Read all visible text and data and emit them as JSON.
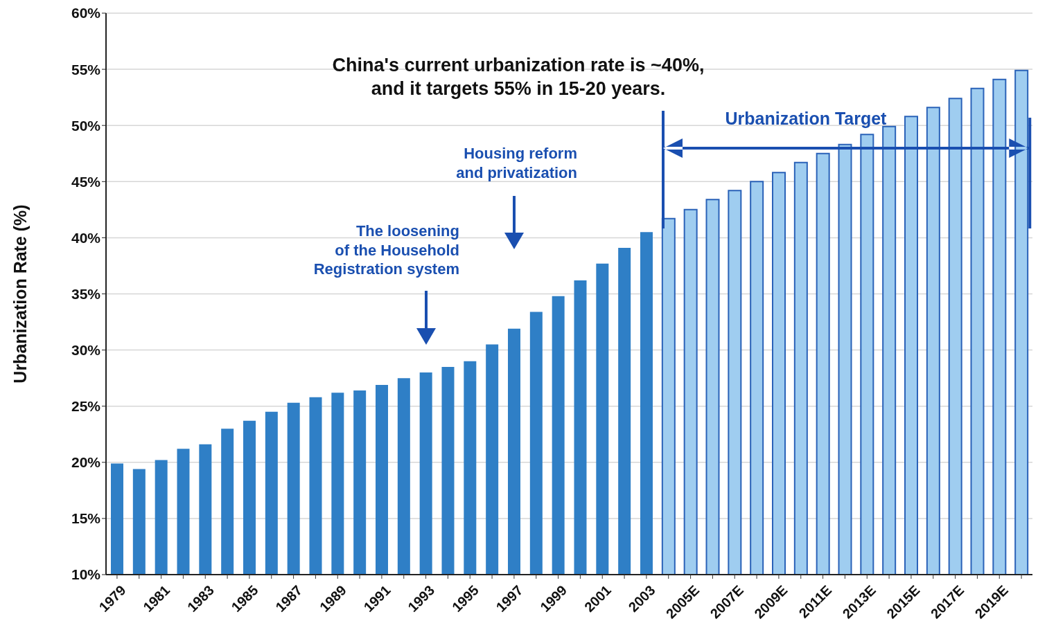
{
  "chart_data": {
    "type": "bar",
    "ylabel": "Urbanization Rate (%)",
    "categories": [
      "1979",
      null,
      "1981",
      null,
      "1983",
      null,
      "1985",
      null,
      "1987",
      null,
      "1989",
      null,
      "1991",
      null,
      "1993",
      null,
      "1995",
      null,
      "1997",
      null,
      "1999",
      null,
      "2001",
      null,
      "2003",
      null,
      "2005E",
      null,
      "2007E",
      null,
      "2009E",
      null,
      "2011E",
      null,
      "2013E",
      null,
      "2015E",
      null,
      "2017E",
      null,
      "2019E",
      null
    ],
    "values": [
      19.9,
      19.4,
      20.2,
      21.2,
      21.6,
      23.0,
      23.7,
      24.5,
      25.3,
      25.8,
      26.2,
      26.4,
      26.9,
      27.5,
      28.0,
      28.5,
      29.0,
      30.5,
      31.9,
      33.4,
      34.8,
      36.2,
      37.7,
      39.1,
      40.5,
      41.7,
      42.5,
      43.4,
      44.2,
      45.0,
      45.8,
      46.7,
      47.5,
      48.3,
      49.2,
      49.9,
      50.8,
      51.6,
      52.4,
      53.3,
      54.1,
      54.9
    ],
    "colors": [
      "#2f7fc6",
      "#2f7fc6",
      "#2f7fc6",
      "#2f7fc6",
      "#2f7fc6",
      "#2f7fc6",
      "#2f7fc6",
      "#2f7fc6",
      "#2f7fc6",
      "#2f7fc6",
      "#2f7fc6",
      "#2f7fc6",
      "#2f7fc6",
      "#2f7fc6",
      "#2f7fc6",
      "#2f7fc6",
      "#2f7fc6",
      "#2f7fc6",
      "#2f7fc6",
      "#2f7fc6",
      "#2f7fc6",
      "#2f7fc6",
      "#2f7fc6",
      "#2f7fc6",
      "#2f7fc6",
      "#9fcdf0",
      "#9fcdf0",
      "#9fcdf0",
      "#9fcdf0",
      "#9fcdf0",
      "#9fcdf0",
      "#9fcdf0",
      "#9fcdf0",
      "#9fcdf0",
      "#9fcdf0",
      "#9fcdf0",
      "#9fcdf0",
      "#9fcdf0",
      "#9fcdf0",
      "#9fcdf0",
      "#9fcdf0",
      "#9fcdf0"
    ],
    "ylim": [
      10,
      60
    ],
    "yticks": [
      {
        "value": 10,
        "label": "10%"
      },
      {
        "value": 15,
        "label": "15%"
      },
      {
        "value": 20,
        "label": "20%"
      },
      {
        "value": 25,
        "label": "25%"
      },
      {
        "value": 30,
        "label": "30%"
      },
      {
        "value": 35,
        "label": "35%"
      },
      {
        "value": 40,
        "label": "40%"
      },
      {
        "value": 45,
        "label": "45%"
      },
      {
        "value": 50,
        "label": "50%"
      },
      {
        "value": 55,
        "label": "55%"
      },
      {
        "value": 60,
        "label": "60%"
      }
    ],
    "grid": "y",
    "annotations": [
      "China's current urbanization rate is ~40%,\nand it targets 55% in 15-20 years.",
      "Housing reform\nand privatization",
      "The loosening\nof the Household\nRegistration system",
      "Urbanization Target"
    ]
  }
}
